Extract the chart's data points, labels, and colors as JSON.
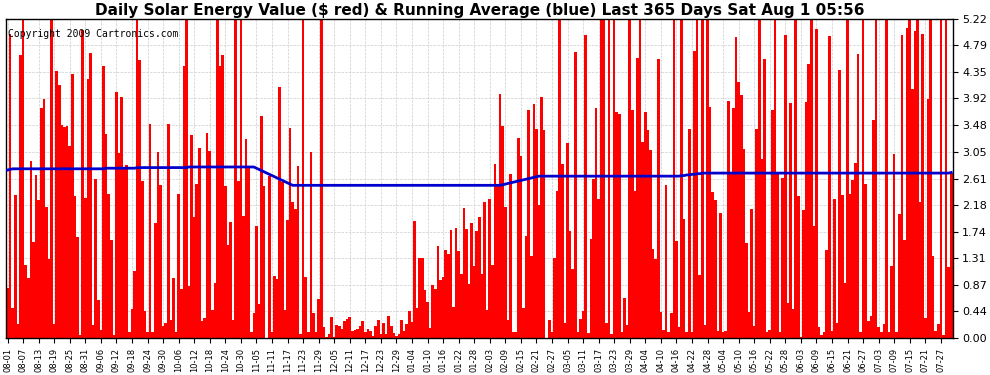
{
  "title": "Daily Solar Energy Value ($ red) & Running Average (blue) Last 365 Days Sat Aug 1 05:56",
  "copyright": "Copyright 2009 Cartronics.com",
  "yticks": [
    0.0,
    0.44,
    0.87,
    1.31,
    1.74,
    2.18,
    2.61,
    3.05,
    3.48,
    3.92,
    4.35,
    4.79,
    5.22
  ],
  "ylim": [
    0,
    5.22
  ],
  "bar_color": "#ff0000",
  "avg_color": "#0000cc",
  "bg_color": "#ffffff",
  "grid_color": "#cccccc",
  "title_fontsize": 11,
  "copyright_fontsize": 7,
  "num_days": 365,
  "x_tick_labels": [
    "08-01",
    "08-07",
    "08-13",
    "08-19",
    "08-25",
    "08-31",
    "09-06",
    "09-12",
    "09-18",
    "09-24",
    "09-30",
    "10-06",
    "10-12",
    "10-18",
    "10-24",
    "10-30",
    "11-05",
    "11-11",
    "11-17",
    "11-23",
    "11-29",
    "12-05",
    "12-11",
    "12-17",
    "12-23",
    "12-29",
    "01-04",
    "01-10",
    "01-16",
    "01-22",
    "01-28",
    "02-03",
    "02-09",
    "02-15",
    "02-21",
    "02-27",
    "03-05",
    "03-11",
    "03-17",
    "03-23",
    "03-29",
    "04-04",
    "04-10",
    "04-16",
    "04-22",
    "04-28",
    "05-04",
    "05-10",
    "05-16",
    "05-22",
    "05-28",
    "06-03",
    "06-09",
    "06-15",
    "06-21",
    "06-27",
    "07-03",
    "07-09",
    "07-15",
    "07-21",
    "07-27"
  ],
  "avg_values": [
    2.75,
    2.76,
    2.77,
    2.77,
    2.77,
    2.77,
    2.77,
    2.77,
    2.77,
    2.77,
    2.77,
    2.77,
    2.77,
    2.77,
    2.77,
    2.77,
    2.77,
    2.77,
    2.77,
    2.77,
    2.77,
    2.77,
    2.77,
    2.77,
    2.77,
    2.77,
    2.77,
    2.77,
    2.77,
    2.77,
    2.77,
    2.77,
    2.77,
    2.77,
    2.77,
    2.77,
    2.77,
    2.77,
    2.78,
    2.78,
    2.78,
    2.78,
    2.78,
    2.78,
    2.78,
    2.78,
    2.78,
    2.78,
    2.78,
    2.78,
    2.79,
    2.79,
    2.79,
    2.79,
    2.79,
    2.79,
    2.79,
    2.79,
    2.79,
    2.79,
    2.79,
    2.79,
    2.79,
    2.79,
    2.79,
    2.79,
    2.79,
    2.79,
    2.79,
    2.79,
    2.8,
    2.8,
    2.8,
    2.8,
    2.8,
    2.8,
    2.8,
    2.8,
    2.8,
    2.8,
    2.8,
    2.8,
    2.8,
    2.8,
    2.8,
    2.8,
    2.8,
    2.8,
    2.8,
    2.8,
    2.8,
    2.8,
    2.8,
    2.8,
    2.8,
    2.8,
    2.78,
    2.76,
    2.74,
    2.72,
    2.7,
    2.68,
    2.66,
    2.64,
    2.62,
    2.6,
    2.58,
    2.56,
    2.54,
    2.52,
    2.5,
    2.5,
    2.5,
    2.5,
    2.5,
    2.5,
    2.5,
    2.5,
    2.5,
    2.5,
    2.5,
    2.5,
    2.5,
    2.5,
    2.5,
    2.5,
    2.5,
    2.5,
    2.5,
    2.5,
    2.5,
    2.5,
    2.5,
    2.5,
    2.5,
    2.5,
    2.5,
    2.5,
    2.5,
    2.5,
    2.5,
    2.5,
    2.5,
    2.5,
    2.5,
    2.5,
    2.5,
    2.5,
    2.5,
    2.5,
    2.5,
    2.5,
    2.5,
    2.5,
    2.5,
    2.5,
    2.5,
    2.5,
    2.5,
    2.5,
    2.5,
    2.5,
    2.5,
    2.5,
    2.5,
    2.5,
    2.5,
    2.5,
    2.5,
    2.5,
    2.5,
    2.5,
    2.5,
    2.5,
    2.5,
    2.5,
    2.5,
    2.5,
    2.5,
    2.5,
    2.5,
    2.5,
    2.5,
    2.5,
    2.5,
    2.5,
    2.5,
    2.5,
    2.5,
    2.5,
    2.5,
    2.51,
    2.52,
    2.53,
    2.54,
    2.55,
    2.56,
    2.57,
    2.58,
    2.59,
    2.6,
    2.61,
    2.62,
    2.63,
    2.64,
    2.65,
    2.65,
    2.65,
    2.65,
    2.65,
    2.65,
    2.65,
    2.65,
    2.65,
    2.65,
    2.65,
    2.65,
    2.65,
    2.65,
    2.65,
    2.65,
    2.65,
    2.65,
    2.65,
    2.65,
    2.65,
    2.65,
    2.65,
    2.65,
    2.65,
    2.65,
    2.65,
    2.65,
    2.65,
    2.65,
    2.65,
    2.65,
    2.65,
    2.65,
    2.65,
    2.65,
    2.65,
    2.65,
    2.65,
    2.65,
    2.65,
    2.65,
    2.65,
    2.65,
    2.65,
    2.65,
    2.65,
    2.65,
    2.65,
    2.65,
    2.65,
    2.65,
    2.65,
    2.65,
    2.65,
    2.66,
    2.66,
    2.67,
    2.67,
    2.68,
    2.68,
    2.69,
    2.69,
    2.7,
    2.7,
    2.7,
    2.7,
    2.7,
    2.7,
    2.7,
    2.7,
    2.7,
    2.7,
    2.7,
    2.7,
    2.7,
    2.7,
    2.7,
    2.7,
    2.7,
    2.7,
    2.7,
    2.7,
    2.7,
    2.7,
    2.7,
    2.7,
    2.7,
    2.7,
    2.7,
    2.7,
    2.7,
    2.7,
    2.7,
    2.7,
    2.7,
    2.7,
    2.7,
    2.7,
    2.7,
    2.7,
    2.7,
    2.7,
    2.7,
    2.7,
    2.7,
    2.7,
    2.7,
    2.7,
    2.7,
    2.7,
    2.7,
    2.7,
    2.7,
    2.7,
    2.7,
    2.7,
    2.7,
    2.7,
    2.7,
    2.7,
    2.7,
    2.7,
    2.7,
    2.7,
    2.7,
    2.7,
    2.7,
    2.7,
    2.7,
    2.7,
    2.7,
    2.7,
    2.7,
    2.7,
    2.7,
    2.7,
    2.7,
    2.7,
    2.7,
    2.7,
    2.7,
    2.7,
    2.7,
    2.7,
    2.7,
    2.7,
    2.7,
    2.7,
    2.7,
    2.7,
    2.7,
    2.7,
    2.7,
    2.7,
    2.7,
    2.7,
    2.7,
    2.7,
    2.71
  ]
}
